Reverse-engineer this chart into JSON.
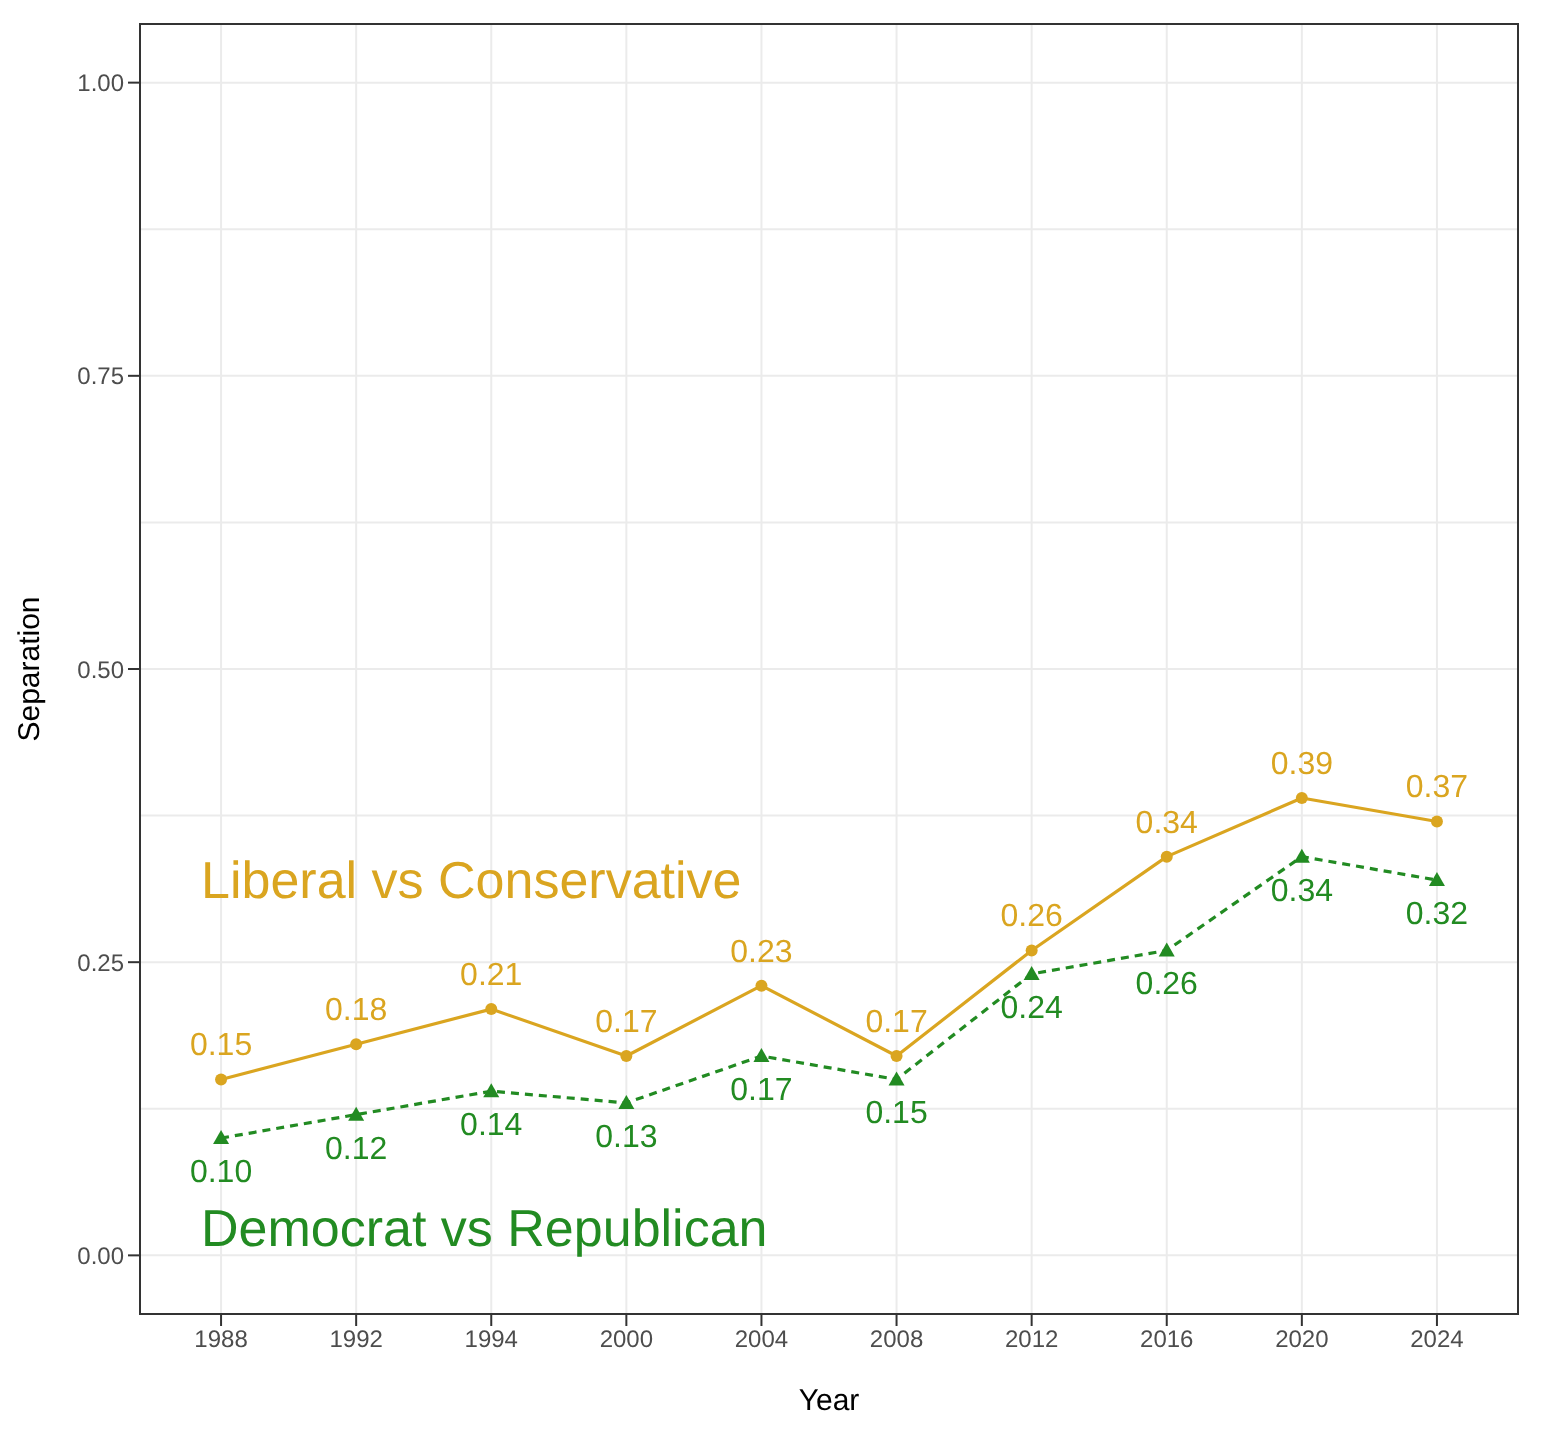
{
  "chart_data": {
    "type": "line",
    "xlabel": "Year",
    "ylabel": "Separation",
    "categories": [
      "1988",
      "1992",
      "1994",
      "2000",
      "2004",
      "2008",
      "2012",
      "2016",
      "2020",
      "2024"
    ],
    "series": [
      {
        "name": "Liberal vs Conservative",
        "color": "#daa520",
        "marker": "circle",
        "line_style": "solid",
        "values": [
          0.15,
          0.18,
          0.21,
          0.17,
          0.23,
          0.17,
          0.26,
          0.34,
          0.39,
          0.37
        ],
        "value_labels": [
          "0.15",
          "0.18",
          "0.21",
          "0.17",
          "0.23",
          "0.17",
          "0.26",
          "0.34",
          "0.39",
          "0.37"
        ]
      },
      {
        "name": "Democrat vs Republican",
        "color": "#228b22",
        "marker": "triangle",
        "line_style": "dashed",
        "values": [
          0.1,
          0.12,
          0.14,
          0.13,
          0.17,
          0.15,
          0.24,
          0.26,
          0.34,
          0.32
        ],
        "value_labels": [
          "0.10",
          "0.12",
          "0.14",
          "0.13",
          "0.17",
          "0.15",
          "0.24",
          "0.26",
          "0.34",
          "0.32"
        ]
      }
    ],
    "ylim": [
      -0.05,
      1.05
    ],
    "yticks": [
      {
        "value": 0,
        "label": "0.00"
      },
      {
        "value": 0.25,
        "label": "0.25"
      },
      {
        "value": 0.5,
        "label": "0.50"
      },
      {
        "value": 0.75,
        "label": "0.75"
      },
      {
        "value": 1,
        "label": "1.00"
      }
    ],
    "grid": true
  }
}
